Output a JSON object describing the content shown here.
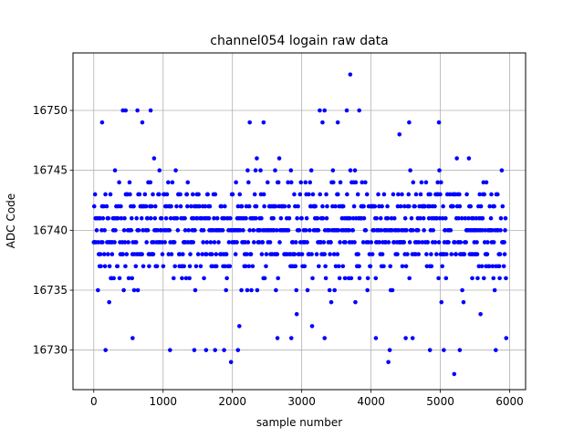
{
  "chart_data": {
    "type": "scatter",
    "title": "channel054 logain raw data",
    "xlabel": "sample number",
    "ylabel": "ADC Code",
    "xlim": [
      -300,
      6230
    ],
    "ylim": [
      16726.7,
      16754.8
    ],
    "xticks": [
      0,
      1000,
      2000,
      3000,
      4000,
      5000,
      6000
    ],
    "yticks": [
      16730,
      16735,
      16740,
      16745,
      16750
    ],
    "grid": true,
    "marker_color": "#0000ff",
    "series": [
      {
        "x_range": [
          0,
          5950
        ],
        "core_level_ranges": [
          [
            16737,
            16743
          ],
          [
            16736,
            16744
          ],
          [
            16735,
            16745
          ]
        ],
        "sparse_levels": [
          16728,
          16729,
          16730,
          16731,
          16732,
          16733,
          16734,
          16746,
          16747,
          16748,
          16749,
          16750
        ],
        "outliers": [
          {
            "x": 3700,
            "y": 16753
          },
          {
            "x": 5200,
            "y": 16728
          },
          {
            "x": 1980,
            "y": 16729
          },
          {
            "x": 4250,
            "y": 16729
          },
          {
            "x": 170,
            "y": 16730
          },
          {
            "x": 1100,
            "y": 16730
          },
          {
            "x": 1450,
            "y": 16730
          },
          {
            "x": 1620,
            "y": 16730
          },
          {
            "x": 1750,
            "y": 16730
          },
          {
            "x": 1880,
            "y": 16730
          },
          {
            "x": 2080,
            "y": 16730
          },
          {
            "x": 4270,
            "y": 16730
          },
          {
            "x": 4850,
            "y": 16730
          },
          {
            "x": 5050,
            "y": 16730
          },
          {
            "x": 5280,
            "y": 16730
          },
          {
            "x": 5800,
            "y": 16730
          },
          {
            "x": 420,
            "y": 16750
          },
          {
            "x": 460,
            "y": 16750
          },
          {
            "x": 630,
            "y": 16750
          },
          {
            "x": 820,
            "y": 16750
          },
          {
            "x": 3260,
            "y": 16750
          },
          {
            "x": 3330,
            "y": 16750
          },
          {
            "x": 3650,
            "y": 16750
          },
          {
            "x": 3830,
            "y": 16750
          },
          {
            "x": 120,
            "y": 16749
          },
          {
            "x": 700,
            "y": 16749
          },
          {
            "x": 2250,
            "y": 16749
          },
          {
            "x": 2450,
            "y": 16749
          },
          {
            "x": 3300,
            "y": 16749
          },
          {
            "x": 3520,
            "y": 16749
          },
          {
            "x": 4550,
            "y": 16749
          },
          {
            "x": 4980,
            "y": 16749
          },
          {
            "x": 560,
            "y": 16731
          },
          {
            "x": 2650,
            "y": 16731
          },
          {
            "x": 2850,
            "y": 16731
          },
          {
            "x": 3330,
            "y": 16731
          },
          {
            "x": 4070,
            "y": 16731
          },
          {
            "x": 4500,
            "y": 16731
          },
          {
            "x": 4600,
            "y": 16731
          },
          {
            "x": 5950,
            "y": 16731
          }
        ]
      }
    ]
  }
}
